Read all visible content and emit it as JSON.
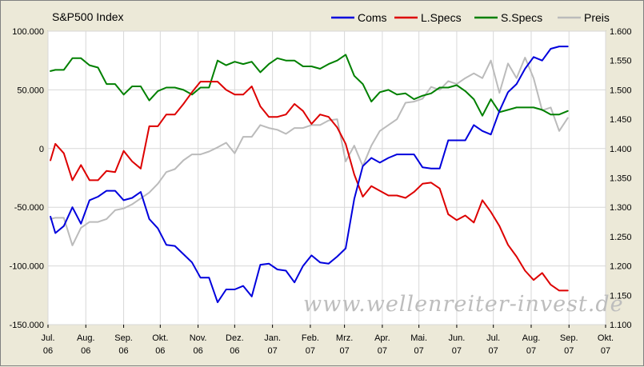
{
  "chart_data": {
    "type": "line",
    "title": "S&P500 Index",
    "watermark": "www.wellenreiter-invest.de",
    "legend_position": "top-right",
    "grid": true,
    "left_axis": {
      "ylim": [
        -150000,
        100000
      ],
      "ticks": [
        100000,
        50000,
        0,
        -50000,
        -100000,
        -150000
      ],
      "tick_labels": [
        "100.000",
        "50.000",
        "0",
        "-50.000",
        "-100.000",
        "-150.000"
      ]
    },
    "right_axis": {
      "ylim": [
        1100,
        1600
      ],
      "ticks": [
        1600,
        1550,
        1500,
        1450,
        1400,
        1350,
        1300,
        1250,
        1200,
        1150,
        1100
      ],
      "tick_labels": [
        "1.600",
        "1.550",
        "1.500",
        "1.450",
        "1.400",
        "1.350",
        "1.300",
        "1.250",
        "1.200",
        "1.150",
        "1.100"
      ]
    },
    "x_axis": {
      "range": [
        "2006-07",
        "2007-10"
      ],
      "months": [
        "Jul.",
        "Aug.",
        "Sep.",
        "Okt.",
        "Nov.",
        "Dez.",
        "Jan.",
        "Feb.",
        "Mrz.",
        "Apr.",
        "Mai.",
        "Jun.",
        "Jul.",
        "Aug.",
        "Sep.",
        "Okt."
      ],
      "years": [
        "06",
        "06",
        "06",
        "06",
        "06",
        "06",
        "07",
        "07",
        "07",
        "07",
        "07",
        "07",
        "07",
        "07",
        "07",
        "07"
      ]
    },
    "series": [
      {
        "name": "Coms",
        "color": "#0000DD",
        "axis": "left",
        "x": [
          "2006-07-03",
          "2006-07-07",
          "2006-07-14",
          "2006-07-21",
          "2006-07-28",
          "2006-08-04",
          "2006-08-11",
          "2006-08-18",
          "2006-08-25",
          "2006-09-01",
          "2006-09-08",
          "2006-09-15",
          "2006-09-22",
          "2006-09-29",
          "2006-10-06",
          "2006-10-13",
          "2006-10-20",
          "2006-10-27",
          "2006-11-03",
          "2006-11-10",
          "2006-11-17",
          "2006-11-24",
          "2006-12-01",
          "2006-12-08",
          "2006-12-15",
          "2006-12-22",
          "2006-12-29",
          "2007-01-05",
          "2007-01-12",
          "2007-01-19",
          "2007-01-26",
          "2007-02-02",
          "2007-02-09",
          "2007-02-16",
          "2007-02-23",
          "2007-03-02",
          "2007-03-09",
          "2007-03-16",
          "2007-03-23",
          "2007-03-30",
          "2007-04-06",
          "2007-04-13",
          "2007-04-20",
          "2007-04-27",
          "2007-05-04",
          "2007-05-11",
          "2007-05-18",
          "2007-05-25",
          "2007-06-01",
          "2007-06-08",
          "2007-06-15",
          "2007-06-22",
          "2007-06-29",
          "2007-07-06",
          "2007-07-13",
          "2007-07-20",
          "2007-07-27",
          "2007-08-03",
          "2007-08-10",
          "2007-08-17",
          "2007-08-24",
          "2007-08-31"
        ],
        "values": [
          -58000,
          -72000,
          -66000,
          -50000,
          -64000,
          -44000,
          -41000,
          -36000,
          -36000,
          -44000,
          -42000,
          -37000,
          -60000,
          -68000,
          -82000,
          -83000,
          -90000,
          -97000,
          -110000,
          -110000,
          -131000,
          -120000,
          -120000,
          -117000,
          -126000,
          -99000,
          -98000,
          -103000,
          -104000,
          -114000,
          -100000,
          -91000,
          -97000,
          -98000,
          -92000,
          -85000,
          -43000,
          -15000,
          -8000,
          -12000,
          -8000,
          -5000,
          -5000,
          -5000,
          -16000,
          -17000,
          -17000,
          7000,
          7000,
          7000,
          20000,
          15000,
          12000,
          32000,
          48000,
          55000,
          68000,
          78000,
          75000,
          85000,
          87000,
          87000
        ]
      },
      {
        "name": "L.Specs",
        "color": "#DD0000",
        "axis": "left",
        "x": [
          "2006-07-03",
          "2006-07-07",
          "2006-07-14",
          "2006-07-21",
          "2006-07-28",
          "2006-08-04",
          "2006-08-11",
          "2006-08-18",
          "2006-08-25",
          "2006-09-01",
          "2006-09-08",
          "2006-09-15",
          "2006-09-22",
          "2006-09-29",
          "2006-10-06",
          "2006-10-13",
          "2006-10-20",
          "2006-10-27",
          "2006-11-03",
          "2006-11-10",
          "2006-11-17",
          "2006-11-24",
          "2006-12-01",
          "2006-12-08",
          "2006-12-15",
          "2006-12-22",
          "2006-12-29",
          "2007-01-05",
          "2007-01-12",
          "2007-01-19",
          "2007-01-26",
          "2007-02-02",
          "2007-02-09",
          "2007-02-16",
          "2007-02-23",
          "2007-03-02",
          "2007-03-09",
          "2007-03-16",
          "2007-03-23",
          "2007-03-30",
          "2007-04-06",
          "2007-04-13",
          "2007-04-20",
          "2007-04-27",
          "2007-05-04",
          "2007-05-11",
          "2007-05-18",
          "2007-05-25",
          "2007-06-01",
          "2007-06-08",
          "2007-06-15",
          "2007-06-22",
          "2007-06-29",
          "2007-07-06",
          "2007-07-13",
          "2007-07-20",
          "2007-07-27",
          "2007-08-03",
          "2007-08-10",
          "2007-08-17",
          "2007-08-24",
          "2007-08-31"
        ],
        "values": [
          -10000,
          4000,
          -4000,
          -27000,
          -14000,
          -27000,
          -27000,
          -19000,
          -20000,
          -2000,
          -11000,
          -17000,
          19000,
          19000,
          29000,
          29000,
          38000,
          48000,
          57000,
          57000,
          57000,
          50000,
          46000,
          46000,
          53000,
          36000,
          27000,
          27000,
          29000,
          38000,
          32000,
          21000,
          29000,
          27000,
          18000,
          4000,
          -22000,
          -41000,
          -32000,
          -36000,
          -40000,
          -40000,
          -42000,
          -37000,
          -30000,
          -29000,
          -34000,
          -56000,
          -61000,
          -57000,
          -63000,
          -44000,
          -54000,
          -66000,
          -82000,
          -92000,
          -104000,
          -112000,
          -106000,
          -116000,
          -121000,
          -121000
        ]
      },
      {
        "name": "S.Specs",
        "color": "#008000",
        "axis": "left",
        "x": [
          "2006-07-03",
          "2006-07-07",
          "2006-07-14",
          "2006-07-21",
          "2006-07-28",
          "2006-08-04",
          "2006-08-11",
          "2006-08-18",
          "2006-08-25",
          "2006-09-01",
          "2006-09-08",
          "2006-09-15",
          "2006-09-22",
          "2006-09-29",
          "2006-10-06",
          "2006-10-13",
          "2006-10-20",
          "2006-10-27",
          "2006-11-03",
          "2006-11-10",
          "2006-11-17",
          "2006-11-24",
          "2006-12-01",
          "2006-12-08",
          "2006-12-15",
          "2006-12-22",
          "2006-12-29",
          "2007-01-05",
          "2007-01-12",
          "2007-01-19",
          "2007-01-26",
          "2007-02-02",
          "2007-02-09",
          "2007-02-16",
          "2007-02-23",
          "2007-03-02",
          "2007-03-09",
          "2007-03-16",
          "2007-03-23",
          "2007-03-30",
          "2007-04-06",
          "2007-04-13",
          "2007-04-20",
          "2007-04-27",
          "2007-05-04",
          "2007-05-11",
          "2007-05-18",
          "2007-05-25",
          "2007-06-01",
          "2007-06-08",
          "2007-06-15",
          "2007-06-22",
          "2007-06-29",
          "2007-07-06",
          "2007-07-13",
          "2007-07-20",
          "2007-07-27",
          "2007-08-03",
          "2007-08-10",
          "2007-08-17",
          "2007-08-24",
          "2007-08-31"
        ],
        "values": [
          66000,
          67000,
          67000,
          77000,
          77000,
          71000,
          69000,
          55000,
          55000,
          46000,
          53000,
          53000,
          41000,
          49000,
          52000,
          52000,
          50000,
          46000,
          52000,
          52000,
          75000,
          71000,
          74000,
          72000,
          74000,
          65000,
          72000,
          77000,
          75000,
          75000,
          70000,
          70000,
          68000,
          72000,
          75000,
          80000,
          62000,
          55000,
          40000,
          48000,
          50000,
          46000,
          47000,
          42000,
          45000,
          47000,
          52000,
          52000,
          54000,
          49000,
          42000,
          28000,
          42000,
          31000,
          33000,
          35000,
          35000,
          35000,
          33000,
          29000,
          29000,
          32000
        ]
      },
      {
        "name": "Preis",
        "color": "#BBBBBB",
        "axis": "right",
        "x": [
          "2006-07-03",
          "2006-07-07",
          "2006-07-14",
          "2006-07-21",
          "2006-07-28",
          "2006-08-04",
          "2006-08-11",
          "2006-08-18",
          "2006-08-25",
          "2006-09-01",
          "2006-09-08",
          "2006-09-15",
          "2006-09-22",
          "2006-09-29",
          "2006-10-06",
          "2006-10-13",
          "2006-10-20",
          "2006-10-27",
          "2006-11-03",
          "2006-11-10",
          "2006-11-17",
          "2006-11-24",
          "2006-12-01",
          "2006-12-08",
          "2006-12-15",
          "2006-12-22",
          "2006-12-29",
          "2007-01-05",
          "2007-01-12",
          "2007-01-19",
          "2007-01-26",
          "2007-02-02",
          "2007-02-09",
          "2007-02-16",
          "2007-02-23",
          "2007-03-02",
          "2007-03-09",
          "2007-03-16",
          "2007-03-23",
          "2007-03-30",
          "2007-04-06",
          "2007-04-13",
          "2007-04-20",
          "2007-04-27",
          "2007-05-04",
          "2007-05-11",
          "2007-05-18",
          "2007-05-25",
          "2007-06-01",
          "2007-06-08",
          "2007-06-15",
          "2007-06-22",
          "2007-06-29",
          "2007-07-06",
          "2007-07-13",
          "2007-07-20",
          "2007-07-27",
          "2007-08-03",
          "2007-08-10",
          "2007-08-17",
          "2007-08-24",
          "2007-08-31"
        ],
        "values": [
          1280,
          1282,
          1282,
          1235,
          1265,
          1275,
          1275,
          1280,
          1295,
          1298,
          1305,
          1315,
          1325,
          1340,
          1360,
          1365,
          1380,
          1390,
          1390,
          1395,
          1402,
          1410,
          1392,
          1420,
          1420,
          1440,
          1435,
          1432,
          1425,
          1435,
          1435,
          1440,
          1440,
          1448,
          1450,
          1378,
          1405,
          1370,
          1405,
          1430,
          1440,
          1450,
          1478,
          1480,
          1485,
          1505,
          1500,
          1515,
          1510,
          1520,
          1528,
          1520,
          1550,
          1495,
          1545,
          1520,
          1555,
          1520,
          1465,
          1470,
          1430,
          1452
        ]
      }
    ]
  }
}
